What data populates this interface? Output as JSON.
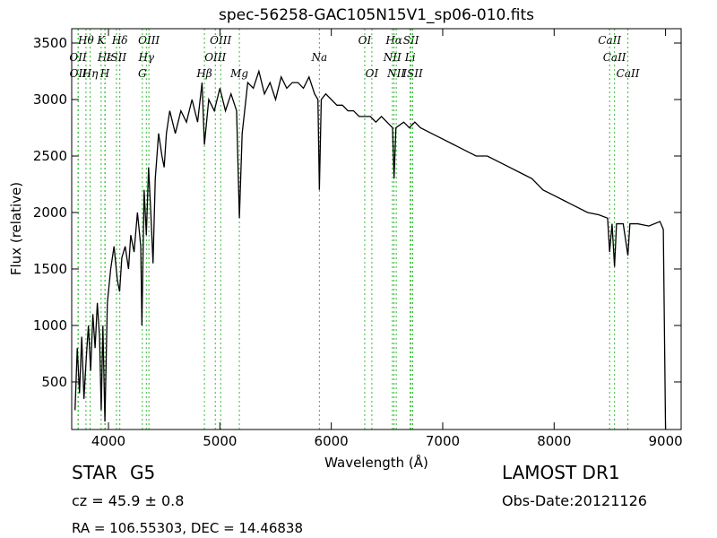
{
  "chart_data": {
    "type": "line",
    "title": "spec-56258-GAC105N15V1_sp06-010.fits",
    "x_label": "Wavelength (Å)",
    "y_label": "Flux (relative)",
    "xlim": [
      3670,
      9140
    ],
    "ylim": [
      79,
      3627
    ],
    "xticks": [
      4000,
      5000,
      6000,
      7000,
      8000,
      9000
    ],
    "yticks": [
      500,
      1000,
      1500,
      2000,
      2500,
      3000,
      3500
    ],
    "series": [
      {
        "color": "#000000",
        "x": [
          3700,
          3720,
          3740,
          3760,
          3780,
          3800,
          3820,
          3840,
          3860,
          3880,
          3900,
          3920,
          3935,
          3950,
          3968,
          3990,
          4020,
          4050,
          4080,
          4100,
          4120,
          4150,
          4180,
          4200,
          4230,
          4260,
          4290,
          4300,
          4320,
          4340,
          4360,
          4380,
          4400,
          4420,
          4450,
          4480,
          4500,
          4520,
          4550,
          4600,
          4650,
          4700,
          4750,
          4800,
          4840,
          4861,
          4900,
          4950,
          5000,
          5050,
          5100,
          5150,
          5175,
          5200,
          5250,
          5300,
          5350,
          5400,
          5450,
          5500,
          5550,
          5600,
          5650,
          5700,
          5750,
          5800,
          5850,
          5880,
          5893,
          5910,
          5950,
          6000,
          6050,
          6100,
          6150,
          6200,
          6250,
          6300,
          6350,
          6400,
          6450,
          6500,
          6550,
          6563,
          6580,
          6650,
          6700,
          6750,
          6800,
          6900,
          7000,
          7100,
          7200,
          7300,
          7400,
          7500,
          7600,
          7700,
          7800,
          7900,
          8000,
          8100,
          8200,
          8300,
          8400,
          8480,
          8498,
          8520,
          8542,
          8560,
          8620,
          8662,
          8680,
          8750,
          8850,
          8950,
          8980,
          9000
        ],
        "values": [
          250,
          800,
          400,
          900,
          350,
          700,
          1000,
          600,
          1100,
          800,
          1200,
          900,
          250,
          1000,
          150,
          1200,
          1500,
          1700,
          1400,
          1300,
          1600,
          1700,
          1500,
          1800,
          1650,
          2000,
          1700,
          1000,
          2200,
          1800,
          2400,
          2000,
          1550,
          2300,
          2700,
          2500,
          2400,
          2700,
          2900,
          2700,
          2900,
          2800,
          3000,
          2800,
          3150,
          2600,
          3000,
          2900,
          3100,
          2900,
          3050,
          2900,
          1950,
          2700,
          3150,
          3100,
          3250,
          3050,
          3150,
          3000,
          3200,
          3100,
          3150,
          3150,
          3100,
          3200,
          3050,
          3000,
          2200,
          3000,
          3050,
          3000,
          2950,
          2950,
          2900,
          2900,
          2850,
          2850,
          2850,
          2800,
          2850,
          2800,
          2750,
          2300,
          2750,
          2800,
          2750,
          2800,
          2750,
          2700,
          2650,
          2600,
          2550,
          2500,
          2500,
          2450,
          2400,
          2350,
          2300,
          2200,
          2150,
          2100,
          2050,
          2000,
          1980,
          1950,
          1650,
          1900,
          1520,
          1900,
          1900,
          1620,
          1900,
          1900,
          1880,
          1920,
          1850,
          70
        ]
      }
    ],
    "line_color": "#33bb33",
    "line_rows": [
      [
        {
          "label": "Hθ",
          "x": 3798
        },
        {
          "label": "K",
          "x": 3934
        },
        {
          "label": "Hδ",
          "x": 4102
        },
        {
          "label": "OIII",
          "x": 4363
        },
        {
          "label": "OIII",
          "x": 5007
        },
        {
          "label": "OI",
          "x": 6300
        },
        {
          "label": "Hα",
          "x": 6563
        },
        {
          "label": "SII",
          "x": 6716
        },
        {
          "label": "CaII",
          "x": 8498
        }
      ],
      [
        {
          "label": "OII",
          "x": 3727
        },
        {
          "label": "Hε",
          "x": 3970
        },
        {
          "label": "ISII",
          "x": 4072
        },
        {
          "label": "Hγ",
          "x": 4340
        },
        {
          "label": "OIII",
          "x": 4959
        },
        {
          "label": "Na",
          "x": 5893
        },
        {
          "label": "NII",
          "x": 6548
        },
        {
          "label": "Li",
          "x": 6708
        },
        {
          "label": "CaII",
          "x": 8542
        }
      ],
      [
        {
          "label": "OII",
          "x": 3729
        },
        {
          "label": "Hη",
          "x": 3835
        },
        {
          "label": "H",
          "x": 3968
        },
        {
          "label": "G",
          "x": 4304
        },
        {
          "label": "Hβ",
          "x": 4861
        },
        {
          "label": "Mg",
          "x": 5175
        },
        {
          "label": "OI",
          "x": 6364
        },
        {
          "label": "NII",
          "x": 6583
        },
        {
          "label": "ISII",
          "x": 6731
        },
        {
          "label": "CaII",
          "x": 8662
        }
      ]
    ],
    "object_class": "STAR",
    "subclass": "G5",
    "redshift": "cz = 45.9 ± 0.8",
    "survey": "LAMOST DR1",
    "obs_date": "Obs-Date:20121126",
    "coords": "RA = 106.55303, DEC = 14.46838"
  }
}
